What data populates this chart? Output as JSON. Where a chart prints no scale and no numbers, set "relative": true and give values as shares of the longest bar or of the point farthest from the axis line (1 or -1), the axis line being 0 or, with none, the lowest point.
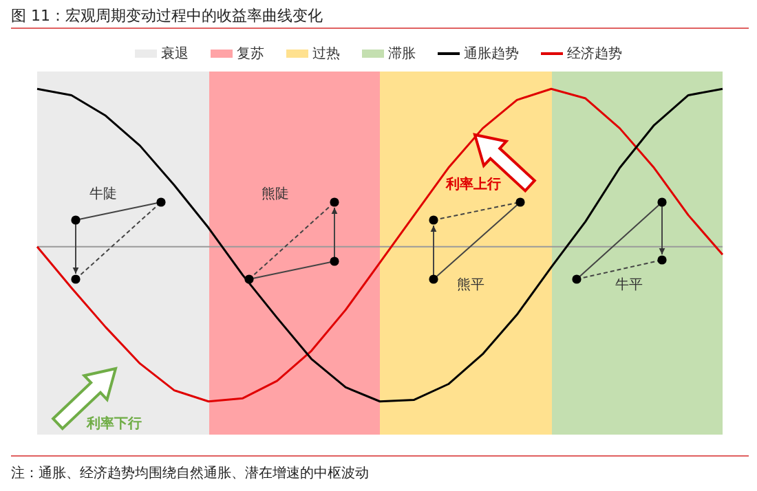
{
  "chart_data": {
    "type": "line",
    "title": "图 11：宏观周期变动过程中的收益率曲线变化",
    "relative": true,
    "legend": "top",
    "marker": "none",
    "line_style": "solid",
    "categories": [
      null,
      null,
      null,
      null,
      null,
      null,
      null,
      null,
      null,
      null,
      null,
      null,
      null,
      null,
      null,
      null,
      null,
      null,
      null,
      null,
      null
    ],
    "series": [
      {
        "name": "通胀趋势",
        "color": "#000000",
        "values": [
          1,
          0.96,
          0.83,
          0.64,
          0.39,
          0.12,
          -0.18,
          -0.45,
          -0.71,
          -0.89,
          -0.98,
          -0.97,
          -0.87,
          -0.68,
          -0.43,
          -0.13,
          0.16,
          0.5,
          0.77,
          0.96,
          1
        ]
      },
      {
        "name": "经济趋势",
        "color": "#e00000",
        "values": [
          0,
          -0.26,
          -0.51,
          -0.74,
          -0.91,
          -0.98,
          -0.96,
          -0.85,
          -0.66,
          -0.4,
          -0.1,
          0.2,
          0.5,
          0.75,
          0.93,
          1,
          0.94,
          0.75,
          0.5,
          0.2,
          -0.05
        ]
      }
    ],
    "annotations": [
      "衰退",
      "复苏",
      "过热",
      "滞胀",
      "牛陡",
      "熊陡",
      "利率上行",
      "熊平",
      "牛平",
      "利率下行",
      "注：通胀、经济趋势均围绕自然通胀、潜在增速的中枢波动"
    ]
  }
}
